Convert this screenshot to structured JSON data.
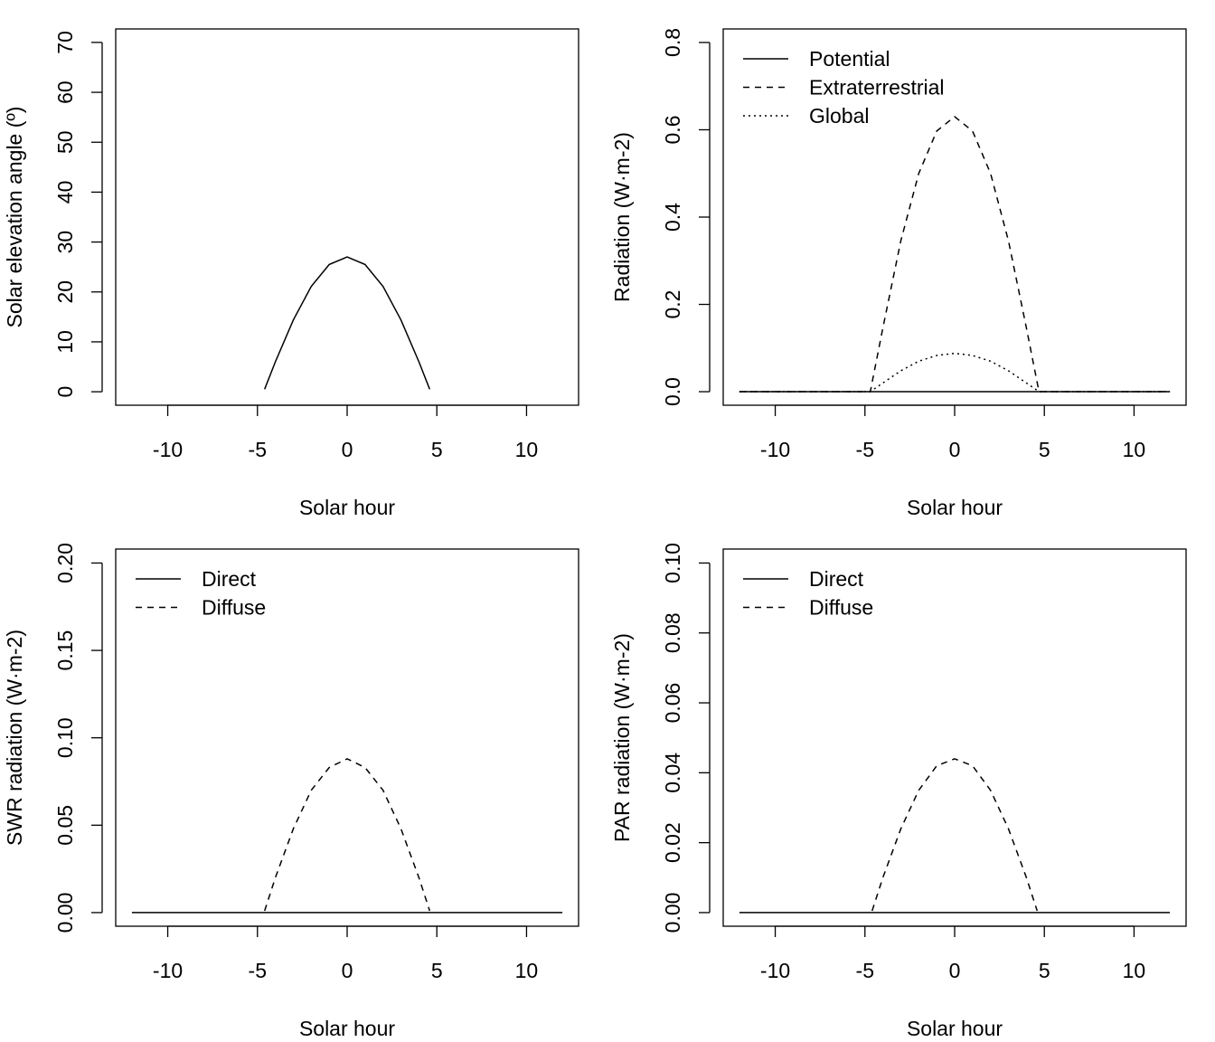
{
  "chart_data": [
    {
      "type": "line",
      "xlabel": "Solar hour",
      "ylabel": "Solar elevation angle (º)",
      "xlim": [
        -12.9,
        12.9
      ],
      "ylim": [
        -2.7,
        72.7
      ],
      "xticks": [
        -10,
        -5,
        0,
        5,
        10
      ],
      "xtick_labels": [
        "-10",
        "-5",
        "0",
        "5",
        "10"
      ],
      "yticks": [
        0,
        10,
        20,
        30,
        40,
        50,
        60,
        70
      ],
      "ytick_labels": [
        "0",
        "10",
        "20",
        "30",
        "40",
        "50",
        "60",
        "70"
      ],
      "grid": false,
      "legend": [],
      "series": [
        {
          "line": "solid",
          "x": [
            -4.6,
            -4,
            -3,
            -2,
            -1,
            0,
            1,
            2,
            3,
            4,
            4.6
          ],
          "y": [
            0.5,
            6.0,
            14.4,
            21.1,
            25.5,
            27.0,
            25.5,
            21.1,
            14.4,
            6.0,
            0.5
          ]
        }
      ]
    },
    {
      "type": "line",
      "xlabel": "Solar hour",
      "ylabel": "Radiation (W·m-2)",
      "xlim": [
        -12.9,
        12.9
      ],
      "ylim": [
        -0.031,
        0.831
      ],
      "xticks": [
        -10,
        -5,
        0,
        5,
        10
      ],
      "xtick_labels": [
        "-10",
        "-5",
        "0",
        "5",
        "10"
      ],
      "yticks": [
        0,
        0.2,
        0.4,
        0.6,
        0.8
      ],
      "ytick_labels": [
        "0.0",
        "0.2",
        "0.4",
        "0.6",
        "0.8"
      ],
      "grid": false,
      "legend_position": "top-left",
      "legend": [
        {
          "label": "Potential",
          "line": "solid"
        },
        {
          "label": "Extraterrestrial",
          "line": "dashed"
        },
        {
          "label": "Global",
          "line": "dotted"
        }
      ],
      "series": [
        {
          "name": "Potential",
          "line": "solid",
          "x": [
            -12,
            12
          ],
          "y": [
            0,
            0
          ]
        },
        {
          "name": "Extraterrestrial",
          "line": "dashed",
          "x": [
            -12,
            -4.7,
            -4,
            -3,
            -2,
            -1,
            0,
            1,
            2,
            3,
            4,
            4.7,
            12
          ],
          "y": [
            0,
            0,
            0.146,
            0.346,
            0.5,
            0.597,
            0.63,
            0.597,
            0.5,
            0.346,
            0.146,
            0,
            0
          ]
        },
        {
          "name": "Global",
          "line": "dotted",
          "x": [
            -12,
            -4.7,
            -4,
            -3,
            -2,
            -1,
            0,
            1,
            2,
            3,
            4,
            4.7,
            12
          ],
          "y": [
            0,
            0,
            0.02,
            0.048,
            0.07,
            0.083,
            0.088,
            0.083,
            0.07,
            0.048,
            0.02,
            0,
            0
          ]
        }
      ]
    },
    {
      "type": "line",
      "xlabel": "Solar hour",
      "ylabel": "SWR radiation (W·m-2)",
      "xlim": [
        -12.9,
        12.9
      ],
      "ylim": [
        -0.0078,
        0.208
      ],
      "xticks": [
        -10,
        -5,
        0,
        5,
        10
      ],
      "xtick_labels": [
        "-10",
        "-5",
        "0",
        "5",
        "10"
      ],
      "yticks": [
        0,
        0.05,
        0.1,
        0.15,
        0.2
      ],
      "ytick_labels": [
        "0.00",
        "0.05",
        "0.10",
        "0.15",
        "0.20"
      ],
      "grid": false,
      "legend_position": "top-left",
      "legend": [
        {
          "label": "Direct",
          "line": "solid"
        },
        {
          "label": "Diffuse",
          "line": "dashed"
        }
      ],
      "series": [
        {
          "name": "Direct",
          "line": "solid",
          "x": [
            -12,
            12
          ],
          "y": [
            0,
            0
          ]
        },
        {
          "name": "Diffuse",
          "line": "dashed",
          "x": [
            -4.6,
            -4,
            -3,
            -2,
            -1,
            0,
            1,
            2,
            3,
            4,
            4.6
          ],
          "y": [
            0.001,
            0.02,
            0.048,
            0.07,
            0.083,
            0.088,
            0.083,
            0.07,
            0.048,
            0.02,
            0.001
          ]
        }
      ]
    },
    {
      "type": "line",
      "xlabel": "Solar hour",
      "ylabel": "PAR radiation (W·m-2)",
      "xlim": [
        -12.9,
        12.9
      ],
      "ylim": [
        -0.0039,
        0.104
      ],
      "xticks": [
        -10,
        -5,
        0,
        5,
        10
      ],
      "xtick_labels": [
        "-10",
        "-5",
        "0",
        "5",
        "10"
      ],
      "yticks": [
        0,
        0.02,
        0.04,
        0.06,
        0.08,
        0.1
      ],
      "ytick_labels": [
        "0.00",
        "0.02",
        "0.04",
        "0.06",
        "0.08",
        "0.10"
      ],
      "grid": false,
      "legend_position": "top-left",
      "legend": [
        {
          "label": "Direct",
          "line": "solid"
        },
        {
          "label": "Diffuse",
          "line": "dashed"
        }
      ],
      "series": [
        {
          "name": "Direct",
          "line": "solid",
          "x": [
            -12,
            12
          ],
          "y": [
            0,
            0
          ]
        },
        {
          "name": "Diffuse",
          "line": "dashed",
          "x": [
            -4.6,
            -4,
            -3,
            -2,
            -1,
            0,
            1,
            2,
            3,
            4,
            4.6
          ],
          "y": [
            0.0005,
            0.01,
            0.024,
            0.035,
            0.042,
            0.044,
            0.042,
            0.035,
            0.024,
            0.01,
            0.0005
          ]
        }
      ]
    }
  ]
}
